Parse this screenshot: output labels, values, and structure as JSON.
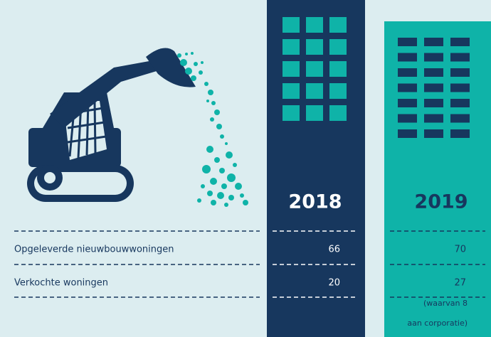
{
  "table": {
    "columns": [
      "2018",
      "2019"
    ],
    "rows": [
      {
        "label": "Opgeleverde nieuwbouwwoningen",
        "values": [
          66,
          70
        ]
      },
      {
        "label": "Verkochte woningen",
        "values": [
          20,
          27
        ],
        "note_lines": [
          "(waarvan 8",
          "aan corporatie)"
        ]
      }
    ]
  }
}
